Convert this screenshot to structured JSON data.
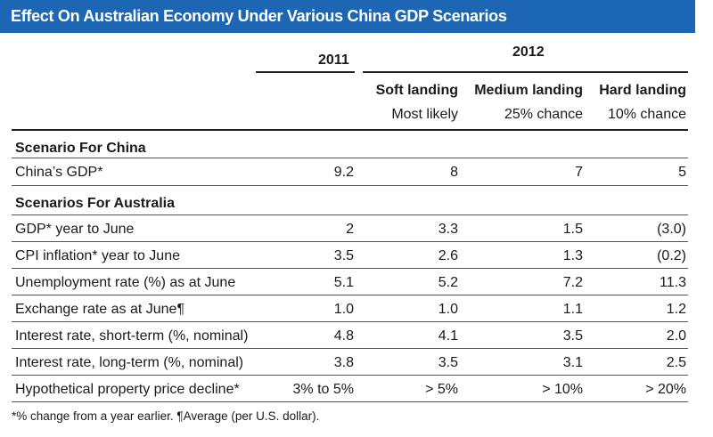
{
  "title": "Effect On Australian Economy Under Various China GDP Scenarios",
  "header": {
    "year_2011": "2011",
    "year_2012": "2012",
    "scenarios": [
      {
        "name": "Soft landing",
        "prob": "Most likely"
      },
      {
        "name": "Medium landing",
        "prob": "25% chance"
      },
      {
        "name": "Hard landing",
        "prob": "10% chance"
      }
    ]
  },
  "sections": [
    {
      "heading": "Scenario For China",
      "rows": [
        {
          "label": "China’s GDP*",
          "v2011": "9.2",
          "soft": "8",
          "medium": "7",
          "hard": "5"
        }
      ]
    },
    {
      "heading": "Scenarios For Australia",
      "rows": [
        {
          "label": "GDP* year to June",
          "v2011": "2",
          "soft": "3.3",
          "medium": "1.5",
          "hard": "(3.0)"
        },
        {
          "label": "CPI inflation* year to June",
          "v2011": "3.5",
          "soft": "2.6",
          "medium": "1.3",
          "hard": "(0.2)"
        },
        {
          "label": "Unemployment rate (%) as at June",
          "v2011": "5.1",
          "soft": "5.2",
          "medium": "7.2",
          "hard": "11.3"
        },
        {
          "label": "Exchange rate as at June¶",
          "v2011": "1.0",
          "soft": "1.0",
          "medium": "1.1",
          "hard": "1.2"
        },
        {
          "label": "Interest rate, short-term (%, nominal)",
          "v2011": "4.8",
          "soft": "4.1",
          "medium": "3.5",
          "hard": "2.0"
        },
        {
          "label": "Interest rate, long-term (%, nominal)",
          "v2011": "3.8",
          "soft": "3.5",
          "medium": "3.1",
          "hard": "2.5"
        },
        {
          "label": "Hypothetical property price decline*",
          "v2011": "3% to 5%",
          "soft": "> 5%",
          "medium": "> 10%",
          "hard": "> 20%"
        }
      ]
    }
  ],
  "footnote": "*% change from a year earlier. ¶Average (per U.S. dollar)."
}
